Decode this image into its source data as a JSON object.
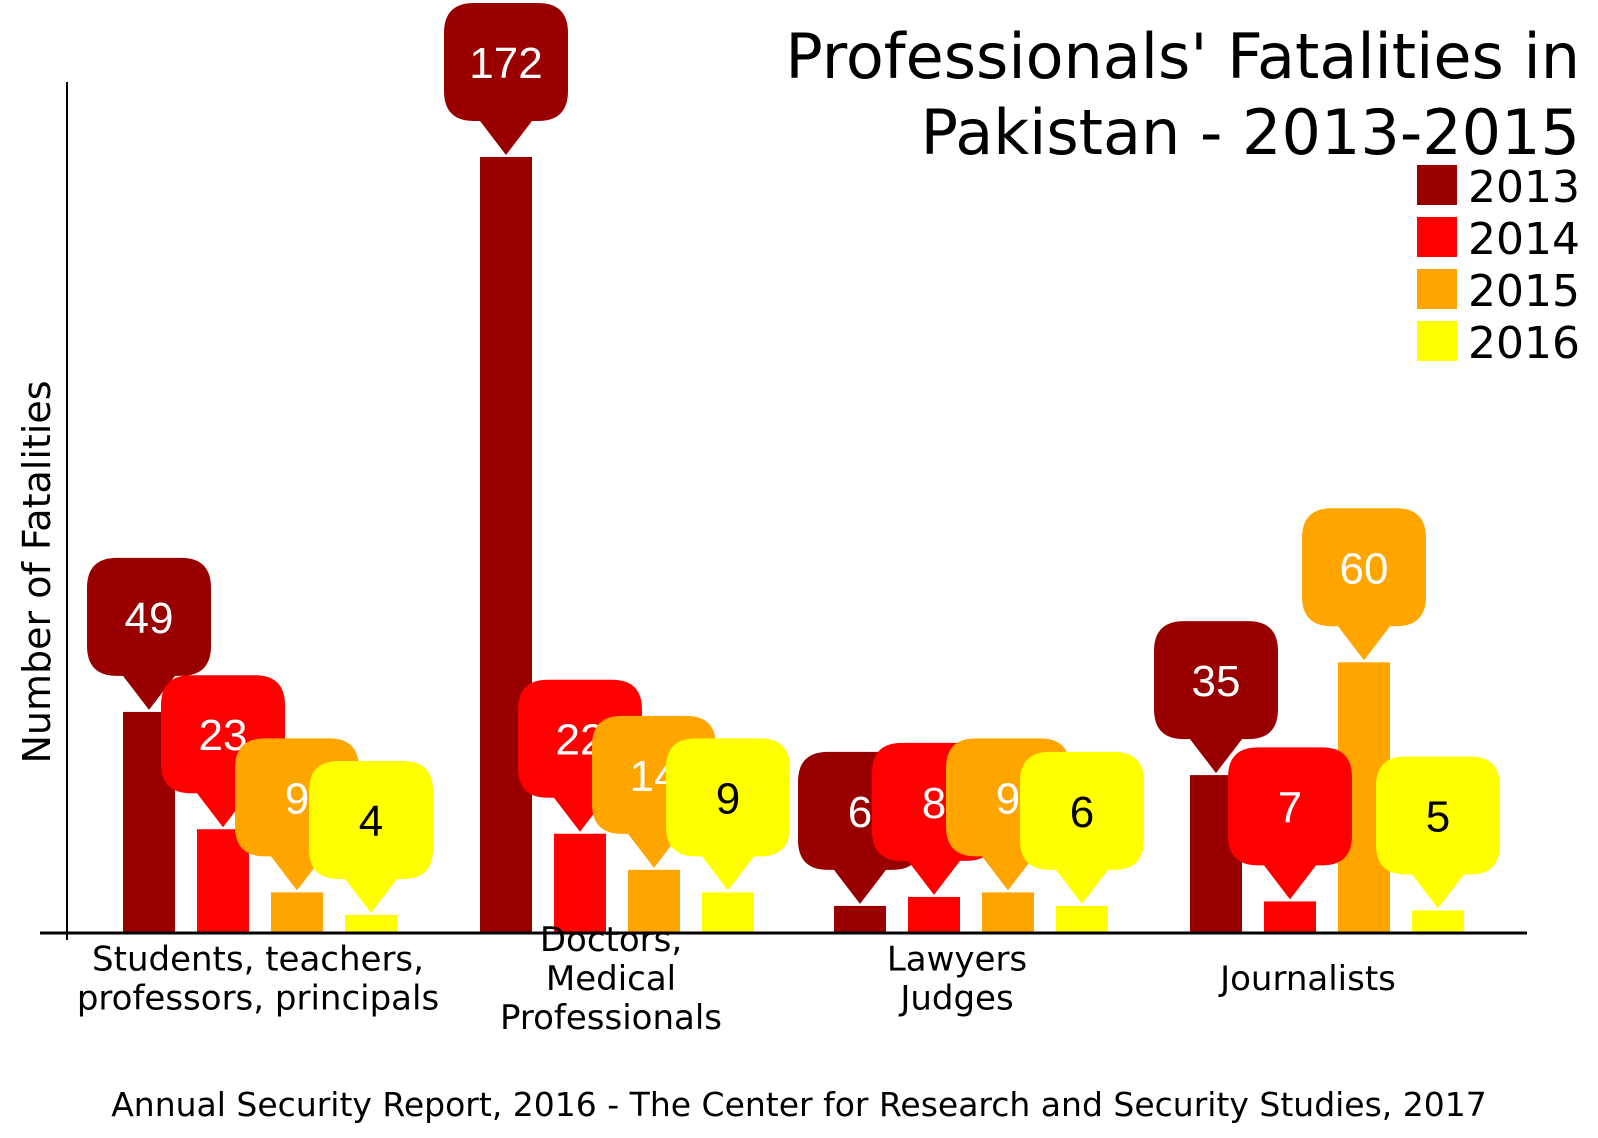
{
  "chart_data": {
    "type": "bar",
    "title_lines": [
      "Professionals' Fatalities in",
      "Pakistan - 2013-2015"
    ],
    "ylabel": "Number of Fatalities",
    "xlabel": "",
    "source": "Annual Security Report, 2016 - The Center for Research and Security Studies, 2017",
    "categories": [
      [
        "Students, teachers,",
        "professors, principals"
      ],
      [
        "Doctors,",
        "Medical",
        "Professionals"
      ],
      [
        "Lawyers",
        "Judges"
      ],
      [
        "Journalists"
      ]
    ],
    "series": [
      {
        "name": "2013",
        "color": "#990000",
        "label_color": "#ffffff",
        "values": [
          49,
          172,
          6,
          35
        ]
      },
      {
        "name": "2014",
        "color": "#ff0000",
        "label_color": "#ffffff",
        "values": [
          23,
          22,
          8,
          7
        ]
      },
      {
        "name": "2015",
        "color": "#ffa500",
        "label_color": "#ffffff",
        "values": [
          9,
          14,
          9,
          60
        ]
      },
      {
        "name": "2016",
        "color": "#ffff00",
        "label_color": "#000000",
        "values": [
          4,
          9,
          6,
          5
        ]
      }
    ],
    "ylim": [
      0,
      175
    ],
    "grid": false,
    "legend_position": "top-right"
  }
}
